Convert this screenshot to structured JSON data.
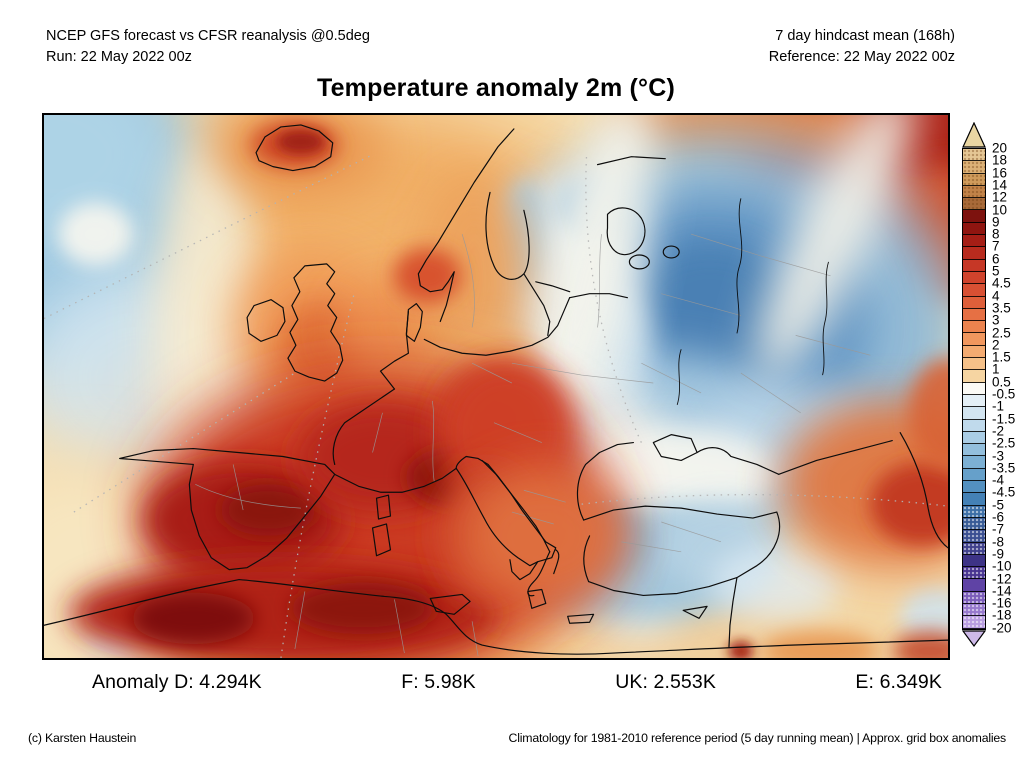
{
  "header": {
    "left_line1": "NCEP GFS forecast vs CFSR reanalysis @0.5deg",
    "left_line2": "Run: 22 May 2022 00z",
    "right_line1": "7 day hindcast mean (168h)",
    "right_line2": "Reference: 22 May 2022 00z"
  },
  "title": "Temperature anomaly 2m (°C)",
  "stats": {
    "d": "Anomaly D: 4.294K",
    "f": "F: 5.98K",
    "uk": "UK: 2.553K",
    "e": "E: 6.349K"
  },
  "footer": {
    "left": "(c) Karsten Haustein",
    "right": "Climatology for 1981-2010 reference period (5 day running mean) | Approx. grid box anomalies"
  },
  "colorbar": {
    "arrow_top_color": "#e9d6a3",
    "arrow_bottom_color": "#cdb9e8",
    "ticks": [
      "20",
      "18",
      "16",
      "14",
      "12",
      "10",
      "9",
      "8",
      "7",
      "6",
      "5",
      "4.5",
      "4",
      "3.5",
      "3",
      "2.5",
      "2",
      "1.5",
      "1",
      "0.5",
      "-0.5",
      "-1",
      "-1.5",
      "-2",
      "-2.5",
      "-3",
      "-3.5",
      "-4",
      "-4.5",
      "-5",
      "-6",
      "-7",
      "-8",
      "-9",
      "-10",
      "-12",
      "-14",
      "-16",
      "-18",
      "-20"
    ],
    "segments": [
      {
        "color": "#e5c795",
        "speckle": "dark"
      },
      {
        "color": "#dcb277",
        "speckle": "dark"
      },
      {
        "color": "#d09c5c",
        "speckle": "dark"
      },
      {
        "color": "#c28349",
        "speckle": "dark"
      },
      {
        "color": "#a96a39",
        "speckle": "dark"
      },
      {
        "color": "#7d120e",
        "speckle": null
      },
      {
        "color": "#8f1510",
        "speckle": null
      },
      {
        "color": "#a51e16",
        "speckle": null
      },
      {
        "color": "#b82b1e",
        "speckle": null
      },
      {
        "color": "#c63726",
        "speckle": null
      },
      {
        "color": "#d0432c",
        "speckle": null
      },
      {
        "color": "#d85033",
        "speckle": null
      },
      {
        "color": "#df5f3a",
        "speckle": null
      },
      {
        "color": "#e67044",
        "speckle": null
      },
      {
        "color": "#ec834e",
        "speckle": null
      },
      {
        "color": "#f1975e",
        "speckle": null
      },
      {
        "color": "#f4ab71",
        "speckle": null
      },
      {
        "color": "#f6c189",
        "speckle": null
      },
      {
        "color": "#f6d5a2",
        "speckle": null
      },
      {
        "color": "#fbfaf5",
        "speckle": null
      },
      {
        "color": "#e4eff6",
        "speckle": null
      },
      {
        "color": "#d3e5f1",
        "speckle": null
      },
      {
        "color": "#c0daec",
        "speckle": null
      },
      {
        "color": "#aacde5",
        "speckle": null
      },
      {
        "color": "#93bfdd",
        "speckle": null
      },
      {
        "color": "#7cb0d4",
        "speckle": null
      },
      {
        "color": "#66a0ca",
        "speckle": null
      },
      {
        "color": "#5390c0",
        "speckle": null
      },
      {
        "color": "#4481b6",
        "speckle": null
      },
      {
        "color": "#3b6ea6",
        "speckle": "light"
      },
      {
        "color": "#375b96",
        "speckle": "light"
      },
      {
        "color": "#3a4e91",
        "speckle": "light"
      },
      {
        "color": "#3f408c",
        "speckle": "light"
      },
      {
        "color": "#3d3386",
        "speckle": null
      },
      {
        "color": "#473390",
        "speckle": "light"
      },
      {
        "color": "#5f43a5",
        "speckle": null
      },
      {
        "color": "#7b5cba",
        "speckle": "light"
      },
      {
        "color": "#9678cc",
        "speckle": "light"
      },
      {
        "color": "#b89de0",
        "speckle": "light"
      }
    ]
  }
}
